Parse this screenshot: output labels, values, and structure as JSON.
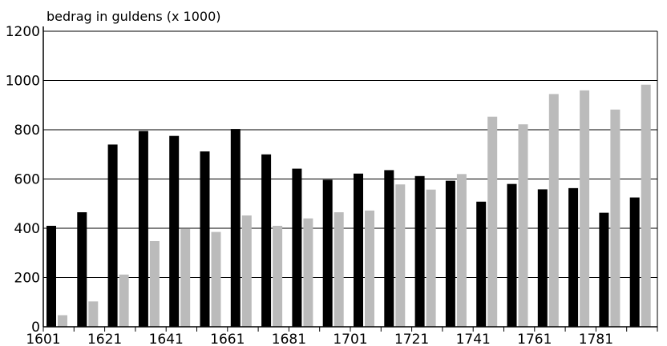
{
  "chart_data": {
    "type": "bar",
    "ylabel": "bedrag in guldens (x 1000)",
    "ylim": [
      0,
      1200
    ],
    "yticks": [
      0,
      200,
      400,
      600,
      800,
      1000,
      1200
    ],
    "grid": true,
    "x_tick_labels": [
      "1601",
      "1621",
      "1641",
      "1661",
      "1681",
      "1701",
      "1721",
      "1741",
      "1761",
      "1781"
    ],
    "series": [
      {
        "color": "#000000",
        "values": [
          410,
          465,
          740,
          795,
          775,
          712,
          803,
          700,
          642,
          597,
          622,
          636,
          612,
          593,
          508,
          580,
          558,
          563,
          463,
          525
        ]
      },
      {
        "color": "#bbbbbb",
        "values": [
          47,
          103,
          212,
          348,
          397,
          385,
          452,
          410,
          440,
          465,
          472,
          578,
          557,
          620,
          853,
          822,
          945,
          960,
          882,
          983
        ]
      }
    ]
  }
}
